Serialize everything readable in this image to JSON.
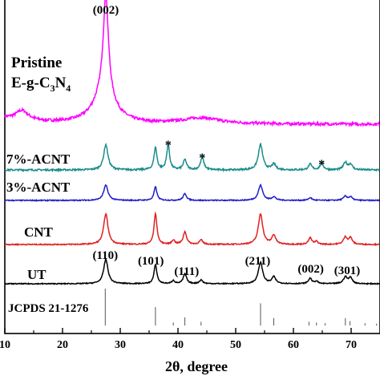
{
  "chart_data": {
    "type": "line",
    "xlabel": "2θ, degree",
    "xlim": [
      10,
      75
    ],
    "x_ticks": [
      10,
      20,
      30,
      40,
      50,
      60,
      70
    ],
    "grid": false,
    "series": [
      {
        "name": "Pristine E-g-C3N4",
        "label_lines": [
          "Pristine",
          "E-g-C",
          "3",
          "N",
          "4"
        ],
        "color": "#ff00ff",
        "baseline": 0.02,
        "peaks": [
          {
            "x": 13.0,
            "h": 0.08,
            "w": 1.3
          },
          {
            "x": 27.5,
            "h": 0.82,
            "w": 0.55
          },
          {
            "x": 27.2,
            "h": 0.25,
            "w": 2.2
          },
          {
            "x": 44.0,
            "h": 0.05,
            "w": 4.0
          }
        ],
        "background": "decaying",
        "noise": 0.012
      },
      {
        "name": "7%-ACNT",
        "color": "#1a8c8c",
        "baseline": 0.0,
        "peaks": [
          {
            "x": 27.5,
            "h": 0.45,
            "w": 0.45
          },
          {
            "x": 36.1,
            "h": 0.4,
            "w": 0.3
          },
          {
            "x": 38.3,
            "h": 0.45,
            "w": 0.3
          },
          {
            "x": 41.2,
            "h": 0.18,
            "w": 0.35
          },
          {
            "x": 44.2,
            "h": 0.22,
            "w": 0.35
          },
          {
            "x": 54.3,
            "h": 0.45,
            "w": 0.45
          },
          {
            "x": 56.6,
            "h": 0.1,
            "w": 0.4
          },
          {
            "x": 62.9,
            "h": 0.1,
            "w": 0.35
          },
          {
            "x": 64.9,
            "h": 0.12,
            "w": 0.35
          },
          {
            "x": 69.0,
            "h": 0.13,
            "w": 0.4
          },
          {
            "x": 69.9,
            "h": 0.1,
            "w": 0.35
          }
        ],
        "noise": 0.015
      },
      {
        "name": "3%-ACNT",
        "color": "#1f1fc8",
        "baseline": 0.0,
        "peaks": [
          {
            "x": 27.5,
            "h": 0.45,
            "w": 0.45
          },
          {
            "x": 36.1,
            "h": 0.4,
            "w": 0.3
          },
          {
            "x": 41.2,
            "h": 0.2,
            "w": 0.35
          },
          {
            "x": 54.3,
            "h": 0.45,
            "w": 0.45
          },
          {
            "x": 56.6,
            "h": 0.1,
            "w": 0.4
          },
          {
            "x": 62.9,
            "h": 0.08,
            "w": 0.35
          },
          {
            "x": 69.0,
            "h": 0.12,
            "w": 0.4
          },
          {
            "x": 69.9,
            "h": 0.1,
            "w": 0.35
          }
        ],
        "noise": 0.015
      },
      {
        "name": "CNT",
        "color": "#e02020",
        "baseline": 0.0,
        "peaks": [
          {
            "x": 27.5,
            "h": 0.85,
            "w": 0.45
          },
          {
            "x": 36.1,
            "h": 0.85,
            "w": 0.3
          },
          {
            "x": 39.2,
            "h": 0.12,
            "w": 0.3
          },
          {
            "x": 41.2,
            "h": 0.35,
            "w": 0.35
          },
          {
            "x": 44.0,
            "h": 0.12,
            "w": 0.35
          },
          {
            "x": 54.3,
            "h": 0.85,
            "w": 0.45
          },
          {
            "x": 56.6,
            "h": 0.25,
            "w": 0.4
          },
          {
            "x": 62.9,
            "h": 0.18,
            "w": 0.35
          },
          {
            "x": 64.0,
            "h": 0.08,
            "w": 0.3
          },
          {
            "x": 69.0,
            "h": 0.2,
            "w": 0.4
          },
          {
            "x": 69.9,
            "h": 0.18,
            "w": 0.35
          }
        ],
        "noise": 0.015
      },
      {
        "name": "UT",
        "color": "#000000",
        "baseline": 0.0,
        "peaks": [
          {
            "x": 27.5,
            "h": 0.8,
            "w": 0.45
          },
          {
            "x": 36.1,
            "h": 0.62,
            "w": 0.3
          },
          {
            "x": 39.2,
            "h": 0.1,
            "w": 0.3
          },
          {
            "x": 41.2,
            "h": 0.32,
            "w": 0.35
          },
          {
            "x": 44.0,
            "h": 0.12,
            "w": 0.35
          },
          {
            "x": 54.3,
            "h": 0.7,
            "w": 0.45
          },
          {
            "x": 56.6,
            "h": 0.22,
            "w": 0.4
          },
          {
            "x": 62.9,
            "h": 0.18,
            "w": 0.35
          },
          {
            "x": 64.0,
            "h": 0.08,
            "w": 0.3
          },
          {
            "x": 69.0,
            "h": 0.22,
            "w": 0.4
          },
          {
            "x": 69.9,
            "h": 0.2,
            "w": 0.35
          }
        ],
        "noise": 0.015
      }
    ],
    "reference": {
      "name": "JCPDS 21-1276",
      "lines": [
        {
          "x": 27.4,
          "i": 1.0
        },
        {
          "x": 36.1,
          "i": 0.5
        },
        {
          "x": 39.2,
          "i": 0.08
        },
        {
          "x": 41.2,
          "i": 0.22
        },
        {
          "x": 44.0,
          "i": 0.1
        },
        {
          "x": 54.3,
          "i": 0.6
        },
        {
          "x": 56.6,
          "i": 0.2
        },
        {
          "x": 62.7,
          "i": 0.1
        },
        {
          "x": 64.0,
          "i": 0.08
        },
        {
          "x": 65.5,
          "i": 0.06
        },
        {
          "x": 69.0,
          "i": 0.2
        },
        {
          "x": 69.8,
          "i": 0.12
        },
        {
          "x": 72.4,
          "i": 0.06
        },
        {
          "x": 74.4,
          "i": 0.05
        }
      ]
    },
    "annotations": [
      {
        "text": "(002)",
        "x": 27.5,
        "series": 0
      },
      {
        "text": "(110)",
        "x": 27.4,
        "series": 4
      },
      {
        "text": "(101)",
        "x": 35.3,
        "series": 4
      },
      {
        "text": "(111)",
        "x": 41.5,
        "series": 4
      },
      {
        "text": "(211)",
        "x": 53.8,
        "series": 4
      },
      {
        "text": "(002)",
        "x": 63.0,
        "series": 4
      },
      {
        "text": "(301)",
        "x": 69.3,
        "series": 4
      },
      {
        "text": "*",
        "x": 38.3,
        "series": 1
      },
      {
        "text": "*",
        "x": 44.2,
        "series": 1
      },
      {
        "text": "*",
        "x": 64.9,
        "series": 1
      }
    ]
  }
}
